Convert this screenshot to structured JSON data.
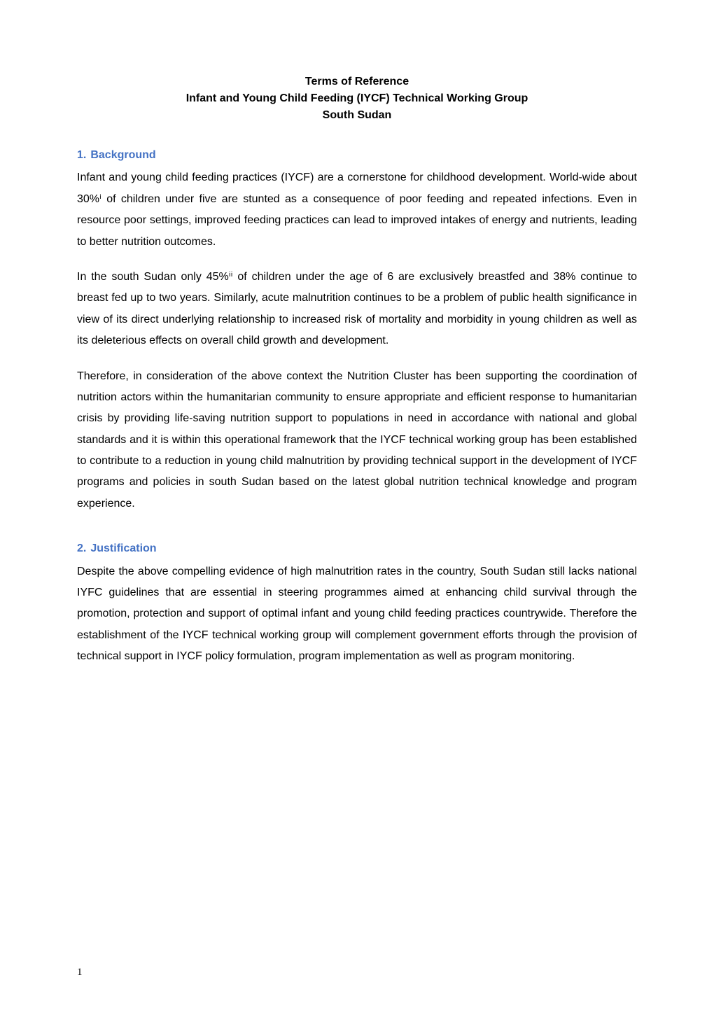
{
  "title": {
    "line1": "Terms of Reference",
    "line2": "Infant and Young Child Feeding (IYCF) Technical Working Group",
    "line3": "South Sudan"
  },
  "sections": {
    "background": {
      "number": "1.",
      "heading": "Background",
      "para1": "Infant and young child feeding practices (IYCF) are a cornerstone for childhood development. World-wide about 30%ⁱ of children under five are stunted as a consequence of poor feeding and repeated infections. Even in resource poor settings, improved feeding practices can lead to improved intakes of energy and nutrients, leading to better nutrition outcomes.",
      "para2": "In the south Sudan only 45%ⁱⁱ of children under the age of 6 are exclusively breastfed and 38% continue to breast fed up to two years. Similarly, acute malnutrition continues to be a problem of public health significance in view of its direct underlying relationship to increased risk of mortality and morbidity in young children as well as its deleterious effects on overall child growth and development.",
      "para3": "Therefore, in consideration of the above context the Nutrition Cluster  has been supporting the coordination of nutrition actors within the humanitarian community to ensure appropriate and efficient response to  humanitarian crisis by providing life-saving nutrition support to populations in need in accordance with national and global standards and it is within this operational framework that the IYCF technical working group has been established to contribute to a reduction in young child malnutrition by providing technical support  in the development of IYCF programs and policies in south Sudan based on the latest global nutrition technical knowledge and program experience."
    },
    "justification": {
      "number": "2.",
      "heading": "Justification",
      "para1": "Despite the above compelling evidence of high malnutrition rates in the country, South Sudan still lacks national IYFC guidelines that are essential in steering programmes aimed at enhancing child survival through the promotion, protection and support of optimal infant and young child feeding practices countrywide. Therefore the establishment of the IYCF technical working group will complement government efforts through the provision of technical support in IYCF policy formulation, program implementation as well as program monitoring."
    }
  },
  "pageNumber": "1",
  "colors": {
    "heading": "#4472c4",
    "text": "#000000",
    "background": "#ffffff"
  },
  "typography": {
    "body_font_family": "Arial, Helvetica, sans-serif",
    "body_font_size": 16,
    "heading_font_size": 16,
    "page_number_font_family": "Times New Roman, serif",
    "page_number_font_size": 15,
    "line_height": 1.9
  }
}
